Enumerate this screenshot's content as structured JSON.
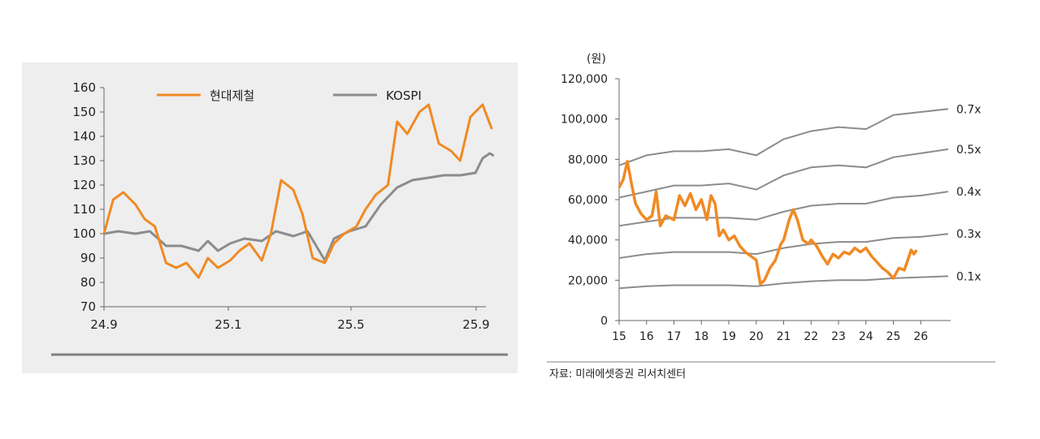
{
  "chart_data": [
    {
      "type": "line",
      "title": "",
      "xlabel": "",
      "ylabel": "",
      "ylim": [
        70,
        160
      ],
      "yticks": [
        70,
        80,
        90,
        100,
        110,
        120,
        130,
        140,
        150,
        160
      ],
      "xtick_labels": [
        "24.9",
        "25.1",
        "25.5",
        "25.9"
      ],
      "xlim_months": [
        "2024-09",
        "2025-09"
      ],
      "legend_position": "top",
      "series": [
        {
          "name": "현대제철",
          "color": "#f08a24",
          "points": [
            [
              "2024-09-01",
              100
            ],
            [
              "2024-09-10",
              114
            ],
            [
              "2024-09-20",
              117
            ],
            [
              "2024-10-01",
              112
            ],
            [
              "2024-10-10",
              106
            ],
            [
              "2024-10-20",
              103
            ],
            [
              "2024-10-31",
              88
            ],
            [
              "2024-11-10",
              86
            ],
            [
              "2024-11-20",
              88
            ],
            [
              "2024-12-01",
              82
            ],
            [
              "2024-12-10",
              90
            ],
            [
              "2024-12-20",
              86
            ],
            [
              "2025-01-01",
              89
            ],
            [
              "2025-01-10",
              93
            ],
            [
              "2025-01-20",
              96
            ],
            [
              "2025-02-01",
              89
            ],
            [
              "2025-02-10",
              100
            ],
            [
              "2025-02-20",
              122
            ],
            [
              "2025-03-01",
              118
            ],
            [
              "2025-03-10",
              108
            ],
            [
              "2025-03-20",
              90
            ],
            [
              "2025-04-01",
              88
            ],
            [
              "2025-04-10",
              96
            ],
            [
              "2025-04-20",
              100
            ],
            [
              "2025-05-01",
              103
            ],
            [
              "2025-05-10",
              110
            ],
            [
              "2025-05-20",
              116
            ],
            [
              "2025-06-01",
              120
            ],
            [
              "2025-06-10",
              146
            ],
            [
              "2025-06-20",
              141
            ],
            [
              "2025-07-01",
              150
            ],
            [
              "2025-07-10",
              153
            ],
            [
              "2025-07-20",
              137
            ],
            [
              "2025-08-01",
              134
            ],
            [
              "2025-08-10",
              130
            ],
            [
              "2025-08-20",
              148
            ],
            [
              "2025-09-01",
              153
            ],
            [
              "2025-09-10",
              143
            ]
          ]
        },
        {
          "name": "KOSPI",
          "color": "#8c8c8c",
          "points": [
            [
              "2024-09-01",
              100
            ],
            [
              "2024-09-15",
              101
            ],
            [
              "2024-10-01",
              100
            ],
            [
              "2024-10-15",
              101
            ],
            [
              "2024-10-31",
              95
            ],
            [
              "2024-11-15",
              95
            ],
            [
              "2024-12-01",
              93
            ],
            [
              "2024-12-10",
              97
            ],
            [
              "2024-12-20",
              93
            ],
            [
              "2025-01-01",
              96
            ],
            [
              "2025-01-15",
              98
            ],
            [
              "2025-02-01",
              97
            ],
            [
              "2025-02-15",
              101
            ],
            [
              "2025-03-01",
              99
            ],
            [
              "2025-03-15",
              101
            ],
            [
              "2025-04-01",
              89
            ],
            [
              "2025-04-10",
              98
            ],
            [
              "2025-04-25",
              101
            ],
            [
              "2025-05-10",
              103
            ],
            [
              "2025-05-25",
              112
            ],
            [
              "2025-06-10",
              119
            ],
            [
              "2025-06-25",
              122
            ],
            [
              "2025-07-10",
              123
            ],
            [
              "2025-07-25",
              124
            ],
            [
              "2025-08-10",
              124
            ],
            [
              "2025-08-25",
              125
            ],
            [
              "2025-09-01",
              131
            ],
            [
              "2025-09-08",
              133
            ],
            [
              "2025-09-12",
              132
            ]
          ]
        }
      ]
    },
    {
      "type": "line",
      "title": "",
      "xlabel": "",
      "ylabel": "(원)",
      "ylim": [
        0,
        120000
      ],
      "yticks": [
        0,
        20000,
        40000,
        60000,
        80000,
        100000,
        120000
      ],
      "ytick_labels": [
        "0",
        "20,000",
        "40,000",
        "60,000",
        "80,000",
        "100,000",
        "120,000"
      ],
      "xtick_labels": [
        "15",
        "16",
        "17",
        "18",
        "19",
        "20",
        "21",
        "22",
        "23",
        "24",
        "25",
        "26"
      ],
      "xlim_year": [
        2015,
        2027
      ],
      "price": {
        "color": "#f08a24",
        "points": [
          [
            2015.0,
            66000
          ],
          [
            2015.15,
            70000
          ],
          [
            2015.3,
            79000
          ],
          [
            2015.45,
            68000
          ],
          [
            2015.6,
            58000
          ],
          [
            2015.8,
            53000
          ],
          [
            2016.0,
            50000
          ],
          [
            2016.2,
            52000
          ],
          [
            2016.35,
            64000
          ],
          [
            2016.5,
            47000
          ],
          [
            2016.7,
            52000
          ],
          [
            2017.0,
            50000
          ],
          [
            2017.2,
            62000
          ],
          [
            2017.4,
            57000
          ],
          [
            2017.6,
            63000
          ],
          [
            2017.8,
            55000
          ],
          [
            2018.0,
            60000
          ],
          [
            2018.2,
            50000
          ],
          [
            2018.35,
            62000
          ],
          [
            2018.5,
            58000
          ],
          [
            2018.65,
            42000
          ],
          [
            2018.8,
            45000
          ],
          [
            2019.0,
            40000
          ],
          [
            2019.2,
            42000
          ],
          [
            2019.4,
            37000
          ],
          [
            2019.6,
            34000
          ],
          [
            2019.8,
            32000
          ],
          [
            2020.0,
            30000
          ],
          [
            2020.15,
            18000
          ],
          [
            2020.3,
            20000
          ],
          [
            2020.5,
            26000
          ],
          [
            2020.7,
            30000
          ],
          [
            2020.9,
            38000
          ],
          [
            2021.0,
            40000
          ],
          [
            2021.2,
            50000
          ],
          [
            2021.35,
            55000
          ],
          [
            2021.5,
            50000
          ],
          [
            2021.7,
            40000
          ],
          [
            2021.9,
            38000
          ],
          [
            2022.0,
            40000
          ],
          [
            2022.2,
            37000
          ],
          [
            2022.4,
            32000
          ],
          [
            2022.6,
            28000
          ],
          [
            2022.8,
            33000
          ],
          [
            2023.0,
            31000
          ],
          [
            2023.2,
            34000
          ],
          [
            2023.4,
            33000
          ],
          [
            2023.6,
            36000
          ],
          [
            2023.8,
            34000
          ],
          [
            2024.0,
            36000
          ],
          [
            2024.2,
            32000
          ],
          [
            2024.4,
            29000
          ],
          [
            2024.6,
            26000
          ],
          [
            2024.8,
            24000
          ],
          [
            2025.0,
            21000
          ],
          [
            2025.2,
            26000
          ],
          [
            2025.4,
            25000
          ],
          [
            2025.55,
            31000
          ],
          [
            2025.65,
            35000
          ],
          [
            2025.75,
            33000
          ],
          [
            2025.85,
            35000
          ]
        ]
      },
      "bands": [
        {
          "label": "0.7x",
          "color": "#8c8c8c",
          "points": [
            [
              2015,
              77000
            ],
            [
              2016,
              82000
            ],
            [
              2017,
              84000
            ],
            [
              2018,
              84000
            ],
            [
              2019,
              85000
            ],
            [
              2020,
              82000
            ],
            [
              2021,
              90000
            ],
            [
              2022,
              94000
            ],
            [
              2023,
              96000
            ],
            [
              2024,
              95000
            ],
            [
              2025,
              102000
            ],
            [
              2026,
              103500
            ],
            [
              2027,
              105000
            ]
          ]
        },
        {
          "label": "0.5x",
          "color": "#8c8c8c",
          "points": [
            [
              2015,
              61000
            ],
            [
              2016,
              64000
            ],
            [
              2017,
              67000
            ],
            [
              2018,
              67000
            ],
            [
              2019,
              68000
            ],
            [
              2020,
              65000
            ],
            [
              2021,
              72000
            ],
            [
              2022,
              76000
            ],
            [
              2023,
              77000
            ],
            [
              2024,
              76000
            ],
            [
              2025,
              81000
            ],
            [
              2026,
              83000
            ],
            [
              2027,
              85000
            ]
          ]
        },
        {
          "label": "0.4x",
          "color": "#8c8c8c",
          "points": [
            [
              2015,
              47000
            ],
            [
              2016,
              49000
            ],
            [
              2017,
              51000
            ],
            [
              2018,
              51000
            ],
            [
              2019,
              51000
            ],
            [
              2020,
              50000
            ],
            [
              2021,
              54000
            ],
            [
              2022,
              57000
            ],
            [
              2023,
              58000
            ],
            [
              2024,
              58000
            ],
            [
              2025,
              61000
            ],
            [
              2026,
              62000
            ],
            [
              2027,
              64000
            ]
          ]
        },
        {
          "label": "0.3x",
          "color": "#8c8c8c",
          "points": [
            [
              2015,
              31000
            ],
            [
              2016,
              33000
            ],
            [
              2017,
              34000
            ],
            [
              2018,
              34000
            ],
            [
              2019,
              34000
            ],
            [
              2020,
              33000
            ],
            [
              2021,
              36000
            ],
            [
              2022,
              38000
            ],
            [
              2023,
              39000
            ],
            [
              2024,
              39000
            ],
            [
              2025,
              41000
            ],
            [
              2026,
              41500
            ],
            [
              2027,
              43000
            ]
          ]
        },
        {
          "label": "0.1x",
          "color": "#8c8c8c",
          "points": [
            [
              2015,
              16000
            ],
            [
              2016,
              17000
            ],
            [
              2017,
              17500
            ],
            [
              2018,
              17500
            ],
            [
              2019,
              17500
            ],
            [
              2020,
              17000
            ],
            [
              2021,
              18500
            ],
            [
              2022,
              19500
            ],
            [
              2023,
              20000
            ],
            [
              2024,
              20000
            ],
            [
              2025,
              21000
            ],
            [
              2026,
              21500
            ],
            [
              2027,
              22000
            ]
          ]
        }
      ],
      "source": "자료: 미래에셋증권 리서치센터"
    }
  ]
}
